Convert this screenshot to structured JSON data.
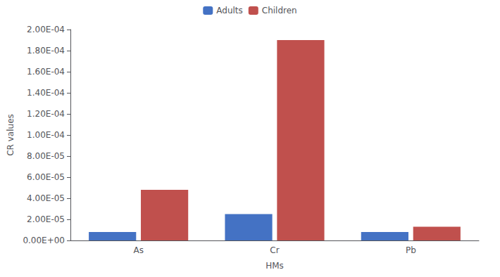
{
  "chart_data": {
    "type": "bar",
    "categories": [
      "As",
      "Cr",
      "Pb"
    ],
    "series": [
      {
        "name": "Adults",
        "color": "#4472C4",
        "values": [
          8e-06,
          2.5e-05,
          8e-06
        ]
      },
      {
        "name": "Children",
        "color": "#C0504D",
        "values": [
          4.8e-05,
          0.00019,
          1.3e-05
        ]
      }
    ],
    "xlabel": "HMs",
    "ylabel": "CR values",
    "ylim": [
      0,
      0.0002
    ],
    "yticks": [
      {
        "value": 0,
        "label": "0.00E+00"
      },
      {
        "value": 2e-05,
        "label": "2.00E-05"
      },
      {
        "value": 4e-05,
        "label": "4.00E-05"
      },
      {
        "value": 6e-05,
        "label": "6.00E-05"
      },
      {
        "value": 8e-05,
        "label": "8.00E-05"
      },
      {
        "value": 0.0001,
        "label": "1.00E-04"
      },
      {
        "value": 0.00012,
        "label": "1.20E-04"
      },
      {
        "value": 0.00014,
        "label": "1.40E-04"
      },
      {
        "value": 0.00016,
        "label": "1.60E-04"
      },
      {
        "value": 0.00018,
        "label": "1.80E-04"
      },
      {
        "value": 0.0002,
        "label": "2.00E-04"
      }
    ],
    "grid": false,
    "legend": "top"
  }
}
